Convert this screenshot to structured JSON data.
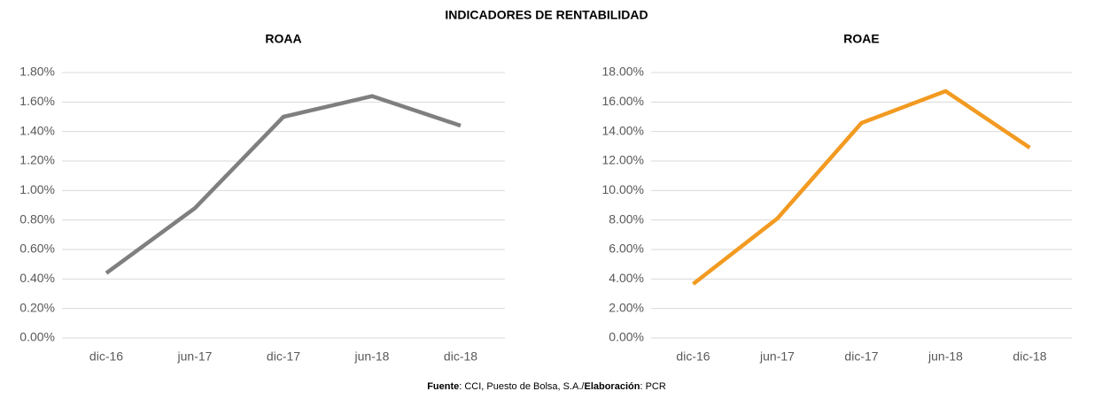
{
  "title": "INDICADORES DE RENTABILIDAD",
  "chart_data": [
    {
      "type": "line",
      "title": "ROAA",
      "categories": [
        "dic-16",
        "jun-17",
        "dic-17",
        "jun-18",
        "dic-18"
      ],
      "series": [
        {
          "color": "#7f7f7f",
          "values": [
            0.44,
            0.88,
            1.5,
            1.64,
            1.44
          ]
        }
      ],
      "ylim": [
        0,
        1.8
      ],
      "yticks": [
        {
          "value": 0,
          "label": "0.00%"
        },
        {
          "value": 0.2,
          "label": "0.20%"
        },
        {
          "value": 0.4,
          "label": "0.40%"
        },
        {
          "value": 0.6,
          "label": "0.60%"
        },
        {
          "value": 0.8,
          "label": "0.80%"
        },
        {
          "value": 1.0,
          "label": "1.00%"
        },
        {
          "value": 1.2,
          "label": "1.20%"
        },
        {
          "value": 1.4,
          "label": "1.40%"
        },
        {
          "value": 1.6,
          "label": "1.60%"
        },
        {
          "value": 1.8,
          "label": "1.80%"
        }
      ],
      "grid": true
    },
    {
      "type": "line",
      "title": "ROAE",
      "categories": [
        "dic-16",
        "jun-17",
        "dic-17",
        "jun-18",
        "dic-18"
      ],
      "series": [
        {
          "color": "#f29a21",
          "values": [
            3.66,
            8.1,
            14.58,
            16.74,
            12.9
          ]
        }
      ],
      "ylim": [
        0,
        18
      ],
      "yticks": [
        {
          "value": 0,
          "label": "0.00%"
        },
        {
          "value": 2,
          "label": "2.00%"
        },
        {
          "value": 4,
          "label": "4.00%"
        },
        {
          "value": 6,
          "label": "6.00%"
        },
        {
          "value": 8,
          "label": "8.00%"
        },
        {
          "value": 10,
          "label": "10.00%"
        },
        {
          "value": 12,
          "label": "12.00%"
        },
        {
          "value": 14,
          "label": "14.00%"
        },
        {
          "value": 16,
          "label": "16.00%"
        },
        {
          "value": 18,
          "label": "18.00%"
        }
      ],
      "grid": true
    }
  ],
  "footer": {
    "source_label": "Fuente",
    "source": ": CCI, Puesto de Bolsa, S.A./",
    "elab_label": "Elaboración",
    "elab": ": PCR"
  }
}
